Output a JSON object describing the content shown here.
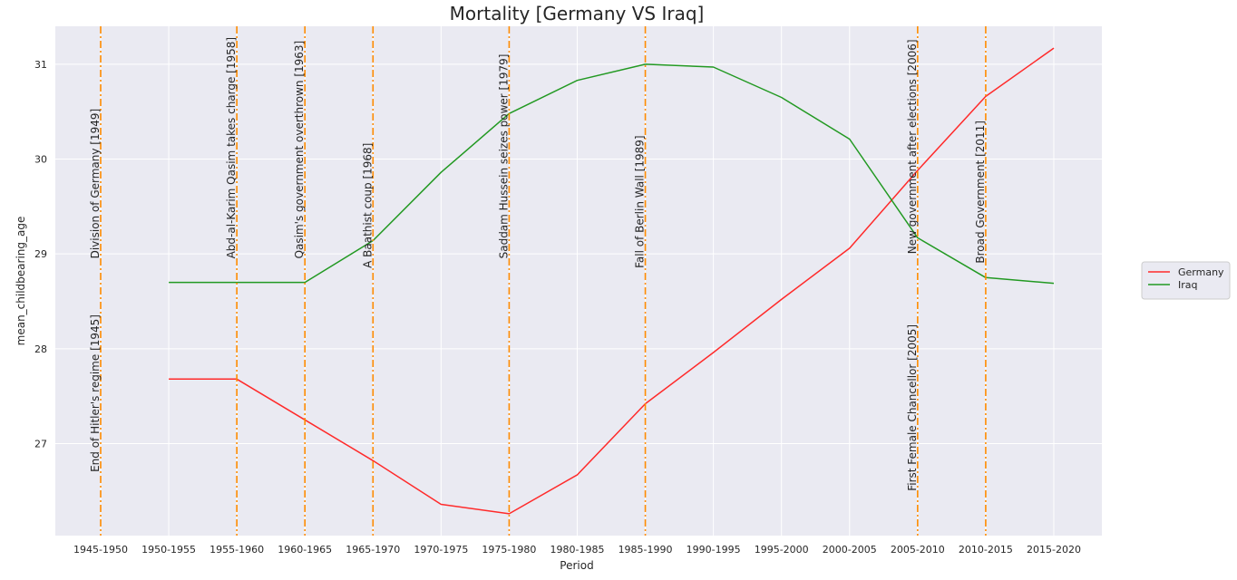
{
  "chart_data": {
    "type": "line",
    "title": "Mortality [Germany VS Iraq]",
    "xlabel": "Period",
    "ylabel": "mean_childbearing_age",
    "categories": [
      "1945-1950",
      "1950-1955",
      "1955-1960",
      "1960-1965",
      "1965-1970",
      "1970-1975",
      "1975-1980",
      "1980-1985",
      "1985-1990",
      "1990-1995",
      "1995-2000",
      "2000-2005",
      "2005-2010",
      "2010-2015",
      "2015-2020"
    ],
    "ylim": [
      26.03,
      31.4
    ],
    "yticks": [
      27,
      28,
      29,
      30,
      31
    ],
    "grid": true,
    "legend_position": "outside right",
    "series": [
      {
        "name": "Germany",
        "color": "#ff2a2a",
        "values": [
          null,
          27.68,
          27.68,
          27.25,
          26.82,
          26.36,
          26.26,
          26.67,
          27.42,
          27.96,
          28.52,
          29.06,
          29.88,
          30.66,
          31.17
        ]
      },
      {
        "name": "Iraq",
        "color": "#229922",
        "values": [
          null,
          28.7,
          28.7,
          28.7,
          29.14,
          29.86,
          30.48,
          30.83,
          31.0,
          30.97,
          30.65,
          30.21,
          29.17,
          28.75,
          28.69
        ]
      }
    ],
    "events": [
      {
        "label": "End of Hitler's regime [1945]",
        "category": "1945-1950",
        "label_y": 26.7
      },
      {
        "label": "Division of Germany [1949]",
        "category": "1945-1950",
        "label_y": 28.95
      },
      {
        "label": "Abd-al-Karim Qasim takes charge [1958]",
        "category": "1955-1960",
        "label_y": 28.95
      },
      {
        "label": "Qasim's government overthrown [1963]",
        "category": "1960-1965",
        "label_y": 28.95
      },
      {
        "label": "A Baathist coup [1968]",
        "category": "1965-1970",
        "label_y": 28.85
      },
      {
        "label": "Saddam Hussein seizes power [1979]",
        "category": "1975-1980",
        "label_y": 28.95
      },
      {
        "label": "Fall of Berlin Wall [1989]",
        "category": "1985-1990",
        "label_y": 28.85
      },
      {
        "label": "First Female Chancellor [2005]",
        "category": "2005-2010",
        "label_y": 26.5
      },
      {
        "label": "New government after elections [2006]",
        "category": "2005-2010",
        "label_y": 29.0
      },
      {
        "label": "Broad Government [2011]",
        "category": "2010-2015",
        "label_y": 28.9
      }
    ],
    "event_line_color": "#ff8c00"
  }
}
